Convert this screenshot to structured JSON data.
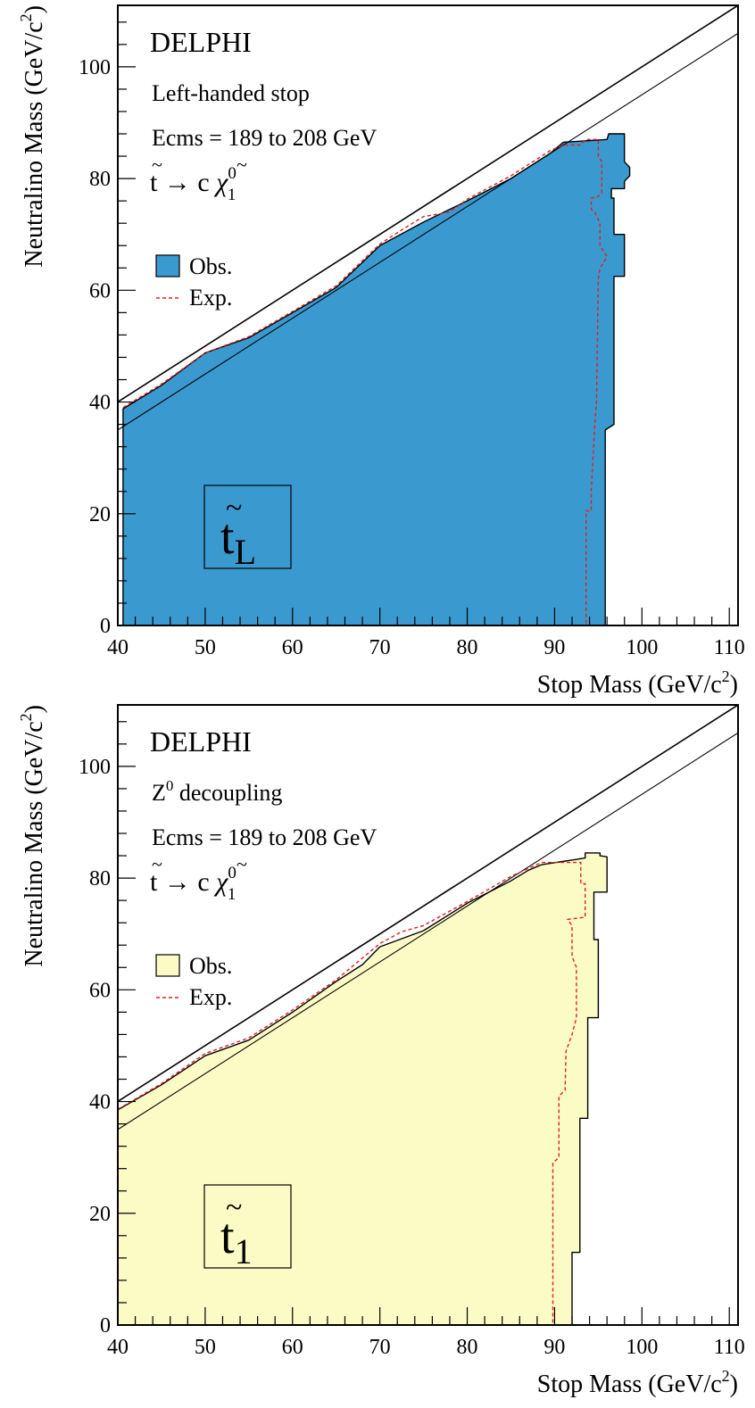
{
  "chart_data": [
    {
      "type": "area",
      "experiment": "DELPHI",
      "subtitle": "Left-handed stop",
      "energy": "Ecms = 189 to 208 GeV",
      "decay": {
        "base": "t",
        "arrow": "→ c",
        "chi": "χ",
        "sup": "0",
        "sub": "1"
      },
      "xlabel": "Stop Mass (GeV/c",
      "xlabel_sup": "2",
      "xlabel_close": ")",
      "ylabel": "Neutralino Mass (GeV/c",
      "ylabel_sup": "2",
      "ylabel_close": ")",
      "xlim": [
        40,
        111
      ],
      "ylim": [
        0,
        111
      ],
      "x_ticks": [
        "40",
        "50",
        "60",
        "70",
        "80",
        "90",
        "100",
        "110"
      ],
      "y_ticks": [
        "0",
        "20",
        "40",
        "60",
        "80",
        "100"
      ],
      "fill_color": "#3a9ad0",
      "expected_color": "#e02020",
      "legend": {
        "obs_label": "Obs.",
        "exp_label": "Exp.",
        "placement": "middle-left"
      },
      "box": {
        "base": "t",
        "sub": "L"
      },
      "observed_region": [
        [
          40.6,
          0
        ],
        [
          40.6,
          38.8
        ],
        [
          45,
          43
        ],
        [
          50,
          48.8
        ],
        [
          55,
          51.5
        ],
        [
          60,
          56
        ],
        [
          65,
          60.5
        ],
        [
          70,
          68
        ],
        [
          75,
          72.2
        ],
        [
          80,
          76
        ],
        [
          85,
          80
        ],
        [
          89.5,
          84.5
        ],
        [
          91,
          86.5
        ],
        [
          96,
          87
        ],
        [
          96.2,
          88
        ],
        [
          98,
          88
        ],
        [
          98,
          83
        ],
        [
          98.6,
          82
        ],
        [
          98.6,
          80.5
        ],
        [
          98,
          79.5
        ],
        [
          98,
          78.2
        ],
        [
          96.5,
          78.2
        ],
        [
          96.5,
          76.5
        ],
        [
          96.8,
          76.5
        ],
        [
          96.8,
          70
        ],
        [
          98,
          70
        ],
        [
          98,
          62.5
        ],
        [
          96.8,
          62.5
        ],
        [
          96.8,
          36
        ],
        [
          95.8,
          35
        ],
        [
          95.8,
          0
        ]
      ],
      "expected_curve": [
        [
          40.6,
          39
        ],
        [
          45,
          43.2
        ],
        [
          50,
          48.8
        ],
        [
          55,
          51.7
        ],
        [
          60,
          56.2
        ],
        [
          65,
          60.8
        ],
        [
          70,
          68.3
        ],
        [
          72.5,
          70.8
        ],
        [
          75,
          73.2
        ],
        [
          78,
          74
        ],
        [
          80,
          76.3
        ],
        [
          85,
          80.5
        ],
        [
          89.5,
          85
        ],
        [
          91,
          86
        ],
        [
          93,
          86
        ],
        [
          93.5,
          87
        ],
        [
          95,
          87
        ],
        [
          95,
          84
        ],
        [
          95.4,
          83
        ],
        [
          95.4,
          77.5
        ],
        [
          95,
          76.8
        ],
        [
          94.2,
          76.5
        ],
        [
          94.2,
          74.5
        ],
        [
          94.6,
          74
        ],
        [
          95.2,
          72
        ],
        [
          95.2,
          68
        ],
        [
          96,
          66
        ],
        [
          95.2,
          64
        ],
        [
          95,
          62
        ],
        [
          94.8,
          40
        ],
        [
          94.6,
          36
        ],
        [
          94.2,
          24
        ],
        [
          94.2,
          20.5
        ],
        [
          93.6,
          20.5
        ],
        [
          93.6,
          0
        ]
      ],
      "kinematic_lines": [
        {
          "name": "m_t = m_chi",
          "points": [
            [
              40,
              40
            ],
            [
              111,
              111
            ]
          ]
        },
        {
          "name": "m_t = m_c + m_chi",
          "points": [
            [
              40,
              35
            ],
            [
              111,
              106
            ]
          ]
        }
      ]
    },
    {
      "type": "area",
      "experiment": "DELPHI",
      "subtitle": "Z",
      "subtitle_sup": "0",
      "subtitle_rest": " decoupling",
      "energy": "Ecms = 189 to 208 GeV",
      "decay": {
        "base": "t",
        "arrow": "→ c",
        "chi": "χ",
        "sup": "0",
        "sub": "1"
      },
      "xlabel": "Stop Mass (GeV/c",
      "xlabel_sup": "2",
      "xlabel_close": ")",
      "ylabel": "Neutralino Mass (GeV/c",
      "ylabel_sup": "2",
      "ylabel_close": ")",
      "xlim": [
        40,
        111
      ],
      "ylim": [
        0,
        111
      ],
      "x_ticks": [
        "40",
        "50",
        "60",
        "70",
        "80",
        "90",
        "100",
        "110"
      ],
      "y_ticks": [
        "0",
        "20",
        "40",
        "60",
        "80",
        "100"
      ],
      "fill_color": "#fbfbc6",
      "expected_color": "#e02020",
      "legend": {
        "obs_label": "Obs.",
        "exp_label": "Exp.",
        "placement": "middle-left"
      },
      "box": {
        "base": "t",
        "sub": "1"
      },
      "observed_region": [
        [
          40,
          0
        ],
        [
          40,
          38.5
        ],
        [
          45,
          43
        ],
        [
          50,
          48.2
        ],
        [
          55,
          51
        ],
        [
          60,
          56
        ],
        [
          65,
          61.5
        ],
        [
          68,
          64.5
        ],
        [
          70,
          67.7
        ],
        [
          75,
          70.6
        ],
        [
          80,
          75.5
        ],
        [
          85,
          79.5
        ],
        [
          87,
          81.4
        ],
        [
          88.5,
          82.4
        ],
        [
          93.5,
          83.6
        ],
        [
          93.5,
          84.5
        ],
        [
          95.2,
          84.5
        ],
        [
          95.2,
          84
        ],
        [
          96,
          83.8
        ],
        [
          96,
          77.5
        ],
        [
          94.5,
          77.5
        ],
        [
          94.5,
          69
        ],
        [
          95,
          69
        ],
        [
          95,
          55
        ],
        [
          93.8,
          55
        ],
        [
          93.8,
          37
        ],
        [
          92.9,
          37
        ],
        [
          92.9,
          13
        ],
        [
          92,
          13
        ],
        [
          92,
          0
        ]
      ],
      "expected_curve": [
        [
          40,
          38.6
        ],
        [
          45,
          43.2
        ],
        [
          50,
          48.6
        ],
        [
          55,
          51.4
        ],
        [
          60,
          56.4
        ],
        [
          65,
          61.8
        ],
        [
          70,
          68.3
        ],
        [
          72.5,
          70.4
        ],
        [
          75,
          71.5
        ],
        [
          80,
          75.8
        ],
        [
          85,
          80.3
        ],
        [
          88.5,
          82.8
        ],
        [
          93,
          82.8
        ],
        [
          93,
          79
        ],
        [
          93.5,
          79
        ],
        [
          93.5,
          73
        ],
        [
          91.5,
          72.6
        ],
        [
          92,
          71.5
        ],
        [
          92,
          66
        ],
        [
          92.5,
          64
        ],
        [
          92.5,
          55
        ],
        [
          92,
          52
        ],
        [
          91.3,
          49
        ],
        [
          91.2,
          42
        ],
        [
          90.5,
          41
        ],
        [
          90.5,
          30
        ],
        [
          89.8,
          29
        ],
        [
          89.8,
          0
        ]
      ],
      "kinematic_lines": [
        {
          "name": "m_t = m_chi",
          "points": [
            [
              40,
              40
            ],
            [
              111,
              111
            ]
          ]
        },
        {
          "name": "m_t = m_c + m_chi",
          "points": [
            [
              40,
              35
            ],
            [
              111,
              106
            ]
          ]
        }
      ]
    }
  ]
}
